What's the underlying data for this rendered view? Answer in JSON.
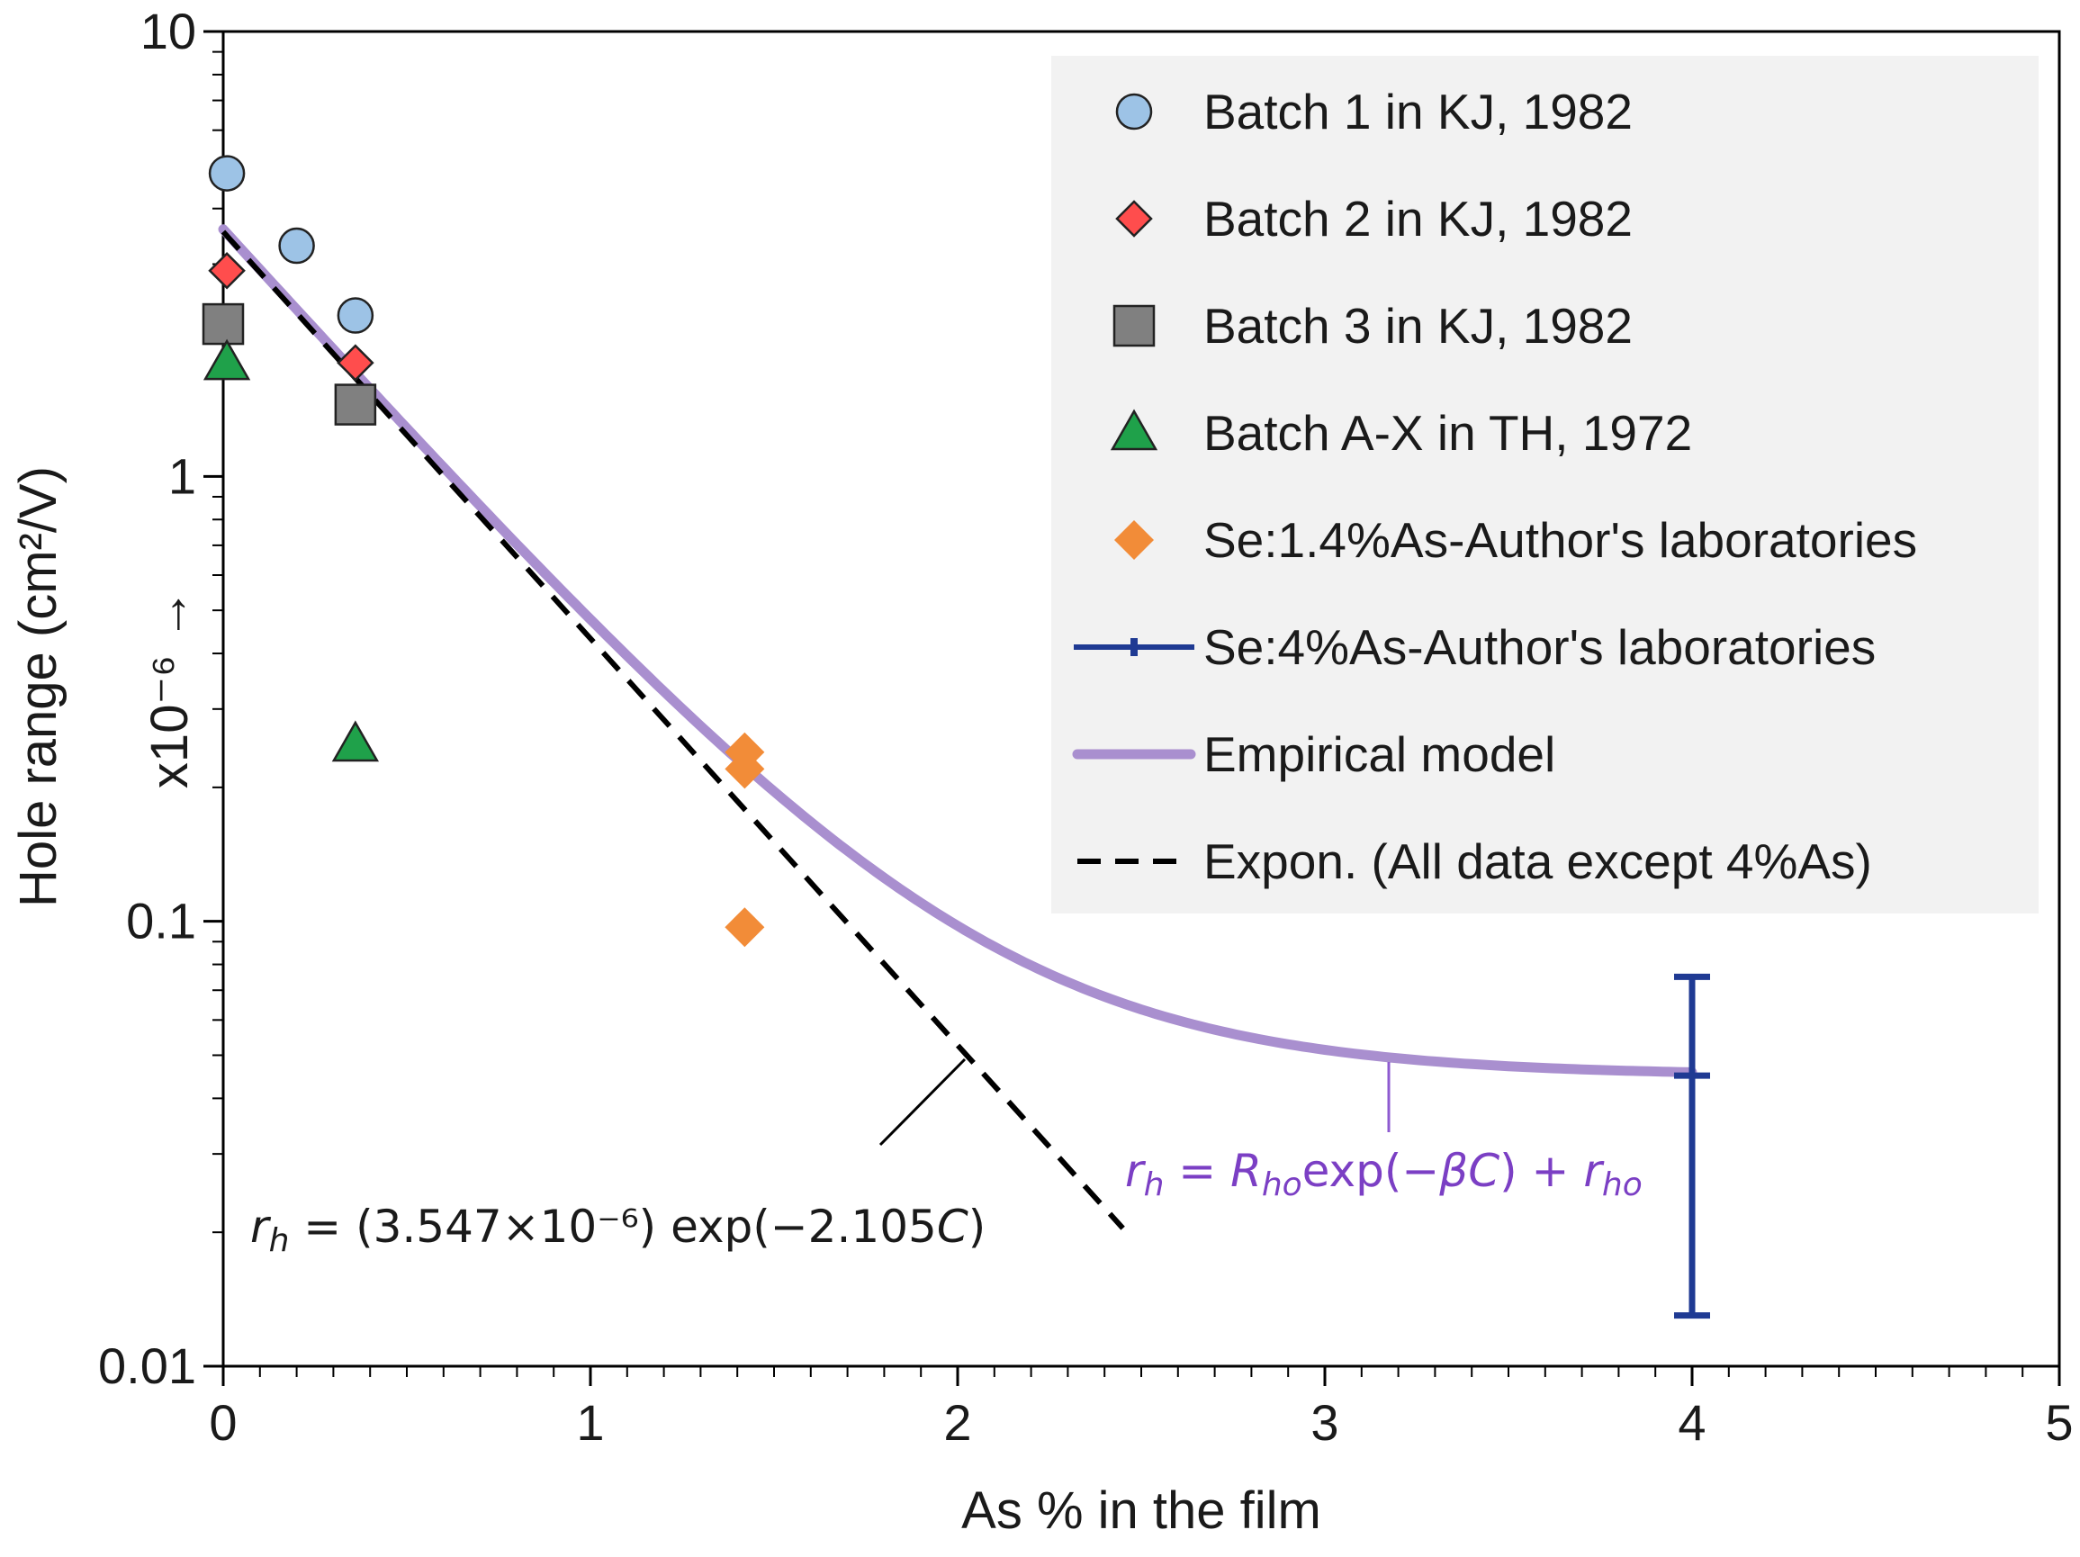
{
  "chart_data": {
    "type": "scatter",
    "title": "",
    "xlabel": "As % in the film",
    "ylabel": "Hole range (cm²/V)",
    "ylabel_scale": "x10⁻⁶ →",
    "xlim": [
      0,
      5
    ],
    "ylim": [
      0.01,
      10
    ],
    "yscale": "log",
    "x_ticks": [
      "0",
      "1",
      "2",
      "3",
      "4",
      "5"
    ],
    "y_ticks": [
      "0.01",
      "0.1",
      "1",
      "10"
    ],
    "grid": false,
    "legend_position": "top-right",
    "series": [
      {
        "name": "Batch 1 in KJ, 1982",
        "marker": "circle",
        "color": "#9DC3E6",
        "points": [
          [
            0.01,
            4.8
          ],
          [
            0.2,
            3.3
          ],
          [
            0.36,
            2.3
          ]
        ]
      },
      {
        "name": "Batch 2 in KJ, 1982",
        "marker": "diamond",
        "color": "#FF4D4D",
        "points": [
          [
            0.01,
            2.9
          ],
          [
            0.36,
            1.8
          ]
        ]
      },
      {
        "name": "Batch 3 in KJ, 1982",
        "marker": "square",
        "color": "#808080",
        "points": [
          [
            0.0,
            2.2
          ],
          [
            0.36,
            1.45
          ]
        ]
      },
      {
        "name": "Batch A-X in TH, 1972",
        "marker": "triangle",
        "color": "#1FA14A",
        "points": [
          [
            0.01,
            1.8
          ],
          [
            0.36,
            0.25
          ]
        ]
      },
      {
        "name": "Se:1.4%As-Author's laboratories",
        "marker": "diamond",
        "color": "#F28C38",
        "points": [
          [
            1.42,
            0.24
          ],
          [
            1.42,
            0.22
          ],
          [
            1.42,
            0.097
          ]
        ]
      },
      {
        "name": "Se:4%As-Author's laboratories",
        "marker": "errorbar",
        "color": "#1F3A93",
        "points": [
          [
            4.0,
            0.045
          ]
        ],
        "error_low": 0.013,
        "error_high": 0.075
      },
      {
        "name": "Empirical model",
        "marker": "line",
        "color": "#A98FCF",
        "R_ho": 3.547,
        "beta": 2.105,
        "r_ho": 0.045
      },
      {
        "name": "Expon. (All data except 4%As)",
        "marker": "dashed-line",
        "color": "#000000",
        "A": 3.547,
        "k": -2.105,
        "x_range": [
          0,
          2.45
        ]
      }
    ],
    "annotations": {
      "fit": {
        "r": "r",
        "sub_h": "h",
        "text": " = (3.547×10⁻⁶) exp(−2.105",
        "C": "C",
        "close": ")"
      },
      "model": {
        "r": "r",
        "sub_h": "h",
        "eq": " = ",
        "R": "R",
        "sub_ho": "ho",
        "exp": "exp(−",
        "beta": "β",
        "C": "C",
        "plus": ") + ",
        "r2": "r",
        "sub_ho2": "ho"
      }
    }
  }
}
